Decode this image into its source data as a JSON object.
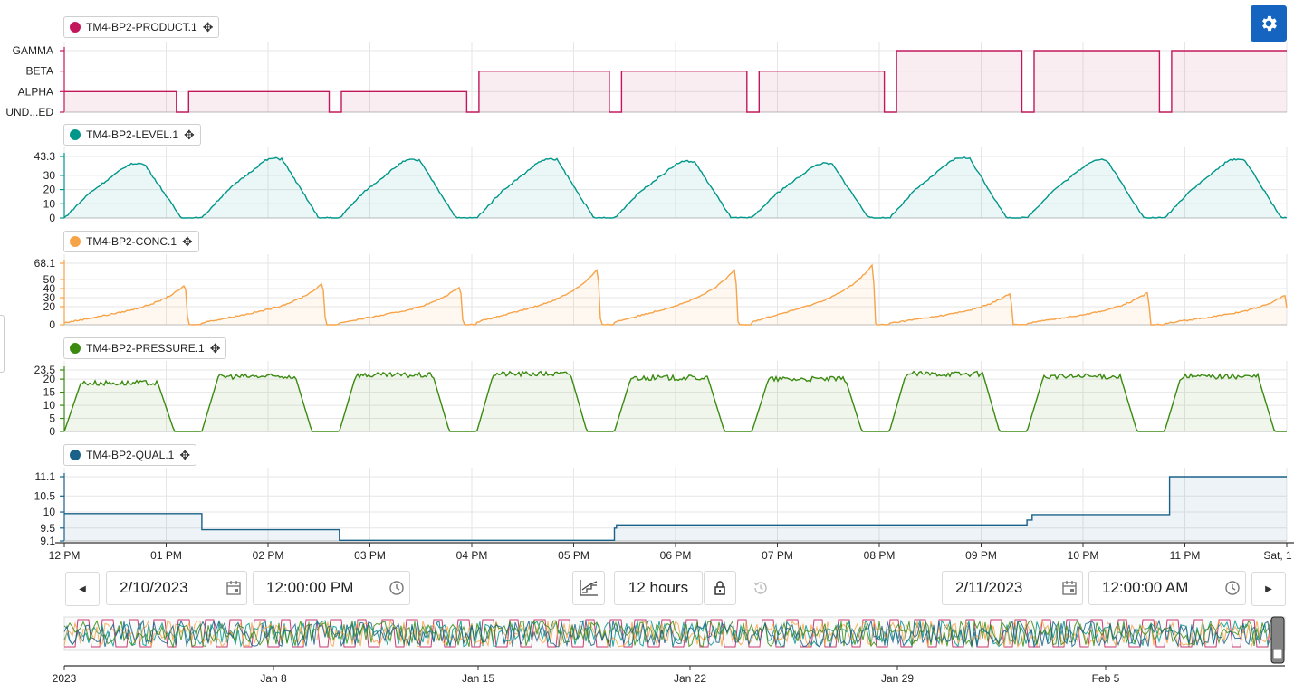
{
  "colors": {
    "product": "#c2185b",
    "level": "#00968a",
    "conc": "#f7a348",
    "pressure": "#3a8a10",
    "qual": "#1a6189",
    "accent": "#1565c0"
  },
  "legends": [
    {
      "label": "TM4-BP2-PRODUCT.1",
      "color": "#c2185b",
      "move_icon": "move-icon"
    },
    {
      "label": "TM4-BP2-LEVEL.1",
      "color": "#00968a",
      "move_icon": "move-icon"
    },
    {
      "label": "TM4-BP2-CONC.1",
      "color": "#f7a348",
      "move_icon": "move-icon"
    },
    {
      "label": "TM4-BP2-PRESSURE.1",
      "color": "#3a8a10",
      "move_icon": "move-icon"
    },
    {
      "label": "TM4-BP2-QUAL.1",
      "color": "#1a6189",
      "move_icon": "move-icon"
    }
  ],
  "time_axis": {
    "labels": [
      "12 PM",
      "01 PM",
      "02 PM",
      "03 PM",
      "04 PM",
      "05 PM",
      "06 PM",
      "07 PM",
      "08 PM",
      "09 PM",
      "10 PM",
      "11 PM",
      "Sat, 1"
    ]
  },
  "toolbar": {
    "start_date": "2/10/2023",
    "start_time": "12:00:00 PM",
    "duration": "12 hours",
    "end_date": "2/11/2023",
    "end_time": "12:00:00 AM",
    "prev_icon": "caret-left-icon",
    "next_icon": "caret-right-icon",
    "calendar_icon": "calendar-icon",
    "clock_icon": "clock-icon",
    "chart_icon": "step-chart-icon",
    "lock_icon": "lock-icon",
    "history_icon": "history-icon",
    "settings_icon": "gear-icon"
  },
  "overview_axis": {
    "labels": [
      "2023",
      "Jan 8",
      "Jan 15",
      "Jan 22",
      "Jan 29",
      "Feb 5"
    ]
  },
  "chart_data": [
    {
      "type": "line",
      "name": "TM4-BP2-PRODUCT.1",
      "categorical_y": true,
      "ylabels": [
        "UND...ED",
        "ALPHA",
        "BETA",
        "GAMMA"
      ],
      "xlim_hours": [
        0,
        12
      ],
      "x_unit": "hours after 12 PM 2/10/2023",
      "step_points": [
        [
          0,
          1
        ],
        [
          1.1,
          1
        ],
        [
          1.1,
          0
        ],
        [
          1.22,
          0
        ],
        [
          1.22,
          1
        ],
        [
          2.6,
          1
        ],
        [
          2.6,
          0
        ],
        [
          2.72,
          0
        ],
        [
          2.72,
          1
        ],
        [
          3.95,
          1
        ],
        [
          3.95,
          0
        ],
        [
          4.07,
          0
        ],
        [
          4.07,
          2
        ],
        [
          5.35,
          2
        ],
        [
          5.35,
          0
        ],
        [
          5.47,
          0
        ],
        [
          5.47,
          2
        ],
        [
          6.7,
          2
        ],
        [
          6.7,
          0
        ],
        [
          6.82,
          0
        ],
        [
          6.82,
          2
        ],
        [
          8.05,
          2
        ],
        [
          8.05,
          0
        ],
        [
          8.17,
          0
        ],
        [
          8.17,
          3
        ],
        [
          9.4,
          3
        ],
        [
          9.4,
          0
        ],
        [
          9.52,
          0
        ],
        [
          9.52,
          3
        ],
        [
          10.75,
          3
        ],
        [
          10.75,
          0
        ],
        [
          10.87,
          0
        ],
        [
          10.87,
          3
        ],
        [
          12,
          3
        ]
      ]
    },
    {
      "type": "line",
      "name": "TM4-BP2-LEVEL.1",
      "ylim": [
        0,
        43.3
      ],
      "yticks": [
        "0",
        "10",
        "20",
        "30",
        "43.3"
      ],
      "xlim_hours": [
        0,
        12
      ],
      "cycle_hours": 1.35,
      "peaks": [
        38.5,
        42,
        41,
        41.5,
        40,
        38.5,
        42.5,
        41,
        41.5
      ]
    },
    {
      "type": "line",
      "name": "TM4-BP2-CONC.1",
      "ylim": [
        0,
        68.1
      ],
      "yticks": [
        "0",
        "20",
        "30",
        "40",
        "50",
        "68.1"
      ],
      "xlim_hours": [
        0,
        12
      ],
      "cycle_hours": 1.35,
      "peaks": [
        44,
        46,
        43,
        62,
        62,
        67,
        35,
        36,
        33
      ]
    },
    {
      "type": "line",
      "name": "TM4-BP2-PRESSURE.1",
      "ylim": [
        0,
        23.5
      ],
      "yticks": [
        "0",
        "5",
        "10",
        "15",
        "20",
        "23.5"
      ],
      "xlim_hours": [
        0,
        12
      ],
      "cycle_hours": 1.35,
      "plateaus": [
        18.5,
        21,
        21.5,
        22,
        20.5,
        20,
        22,
        21,
        21
      ]
    },
    {
      "type": "line",
      "name": "TM4-BP2-QUAL.1",
      "ylim": [
        9.1,
        11.1
      ],
      "yticks": [
        "9.1",
        "9.5",
        "10",
        "10.5",
        "11.1"
      ],
      "xlim_hours": [
        0,
        12
      ],
      "step_points": [
        [
          0,
          9.95
        ],
        [
          1.35,
          9.95
        ],
        [
          1.35,
          9.45
        ],
        [
          2.7,
          9.45
        ],
        [
          2.7,
          9.12
        ],
        [
          5.4,
          9.12
        ],
        [
          5.4,
          9.5
        ],
        [
          5.42,
          9.5
        ],
        [
          5.42,
          9.6
        ],
        [
          9.45,
          9.6
        ],
        [
          9.45,
          9.75
        ],
        [
          9.5,
          9.75
        ],
        [
          9.5,
          9.92
        ],
        [
          10.85,
          9.92
        ],
        [
          10.85,
          11.1
        ],
        [
          12,
          11.1
        ]
      ]
    }
  ]
}
